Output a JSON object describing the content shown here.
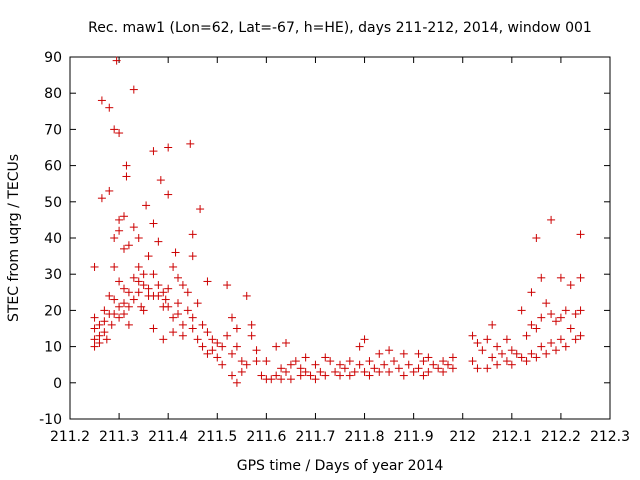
{
  "chart_data": {
    "type": "scatter",
    "title": "Rec. maw1 (Lon=62, Lat=-67, h=HE), days 211-212, 2014, window 001",
    "xlabel": "GPS time / Days of year 2014",
    "ylabel": "STEC from uqrg / TECUs",
    "xlim": [
      211.2,
      212.3
    ],
    "ylim": [
      -10,
      90
    ],
    "xticks": [
      "211.2",
      "211.3",
      "211.4",
      "211.5",
      "211.6",
      "211.7",
      "211.8",
      "211.9",
      "212",
      "212.1",
      "212.2",
      "212.3"
    ],
    "yticks": [
      "-10",
      "0",
      "10",
      "20",
      "30",
      "40",
      "50",
      "60",
      "70",
      "80",
      "90"
    ],
    "grid": false,
    "legend": "none",
    "marker": "plus",
    "color": "#cc0000",
    "series": [
      {
        "points": [
          [
            211.25,
            32
          ],
          [
            211.25,
            18
          ],
          [
            211.25,
            15
          ],
          [
            211.25,
            12
          ],
          [
            211.25,
            10
          ],
          [
            211.26,
            16
          ],
          [
            211.26,
            13
          ],
          [
            211.26,
            11
          ],
          [
            211.265,
            78
          ],
          [
            211.265,
            51
          ],
          [
            211.27,
            20
          ],
          [
            211.27,
            17
          ],
          [
            211.27,
            14
          ],
          [
            211.275,
            12
          ],
          [
            211.28,
            76
          ],
          [
            211.28,
            53
          ],
          [
            211.28,
            24
          ],
          [
            211.28,
            19
          ],
          [
            211.285,
            16
          ],
          [
            211.29,
            70
          ],
          [
            211.29,
            40
          ],
          [
            211.29,
            32
          ],
          [
            211.29,
            23
          ],
          [
            211.29,
            19
          ],
          [
            211.295,
            89
          ],
          [
            211.3,
            69
          ],
          [
            211.3,
            45
          ],
          [
            211.3,
            42
          ],
          [
            211.3,
            28
          ],
          [
            211.3,
            21
          ],
          [
            211.3,
            18
          ],
          [
            211.31,
            46
          ],
          [
            211.31,
            37
          ],
          [
            211.31,
            26
          ],
          [
            211.31,
            22
          ],
          [
            211.31,
            19
          ],
          [
            211.315,
            60
          ],
          [
            211.315,
            57
          ],
          [
            211.32,
            38
          ],
          [
            211.32,
            25
          ],
          [
            211.32,
            21
          ],
          [
            211.32,
            16
          ],
          [
            211.33,
            81
          ],
          [
            211.33,
            43
          ],
          [
            211.33,
            29
          ],
          [
            211.33,
            23
          ],
          [
            211.34,
            40
          ],
          [
            211.34,
            32
          ],
          [
            211.34,
            28
          ],
          [
            211.34,
            25
          ],
          [
            211.345,
            21
          ],
          [
            211.35,
            30
          ],
          [
            211.35,
            27
          ],
          [
            211.35,
            20
          ],
          [
            211.355,
            49
          ],
          [
            211.36,
            35
          ],
          [
            211.36,
            26
          ],
          [
            211.36,
            24
          ],
          [
            211.37,
            64
          ],
          [
            211.37,
            44
          ],
          [
            211.37,
            30
          ],
          [
            211.37,
            24
          ],
          [
            211.37,
            15
          ],
          [
            211.38,
            39
          ],
          [
            211.38,
            27
          ],
          [
            211.38,
            24
          ],
          [
            211.385,
            56
          ],
          [
            211.39,
            25
          ],
          [
            211.39,
            21
          ],
          [
            211.39,
            12
          ],
          [
            211.395,
            23
          ],
          [
            211.4,
            65
          ],
          [
            211.4,
            52
          ],
          [
            211.4,
            26
          ],
          [
            211.4,
            21
          ],
          [
            211.41,
            32
          ],
          [
            211.41,
            18
          ],
          [
            211.41,
            14
          ],
          [
            211.415,
            36
          ],
          [
            211.42,
            29
          ],
          [
            211.42,
            22
          ],
          [
            211.42,
            19
          ],
          [
            211.43,
            27
          ],
          [
            211.43,
            16
          ],
          [
            211.43,
            13
          ],
          [
            211.44,
            25
          ],
          [
            211.44,
            20
          ],
          [
            211.445,
            66
          ],
          [
            211.45,
            35
          ],
          [
            211.45,
            41
          ],
          [
            211.45,
            18
          ],
          [
            211.45,
            15
          ],
          [
            211.46,
            22
          ],
          [
            211.46,
            12
          ],
          [
            211.465,
            48
          ],
          [
            211.47,
            16
          ],
          [
            211.47,
            10
          ],
          [
            211.48,
            28
          ],
          [
            211.48,
            14
          ],
          [
            211.48,
            8
          ],
          [
            211.49,
            12
          ],
          [
            211.49,
            9
          ],
          [
            211.5,
            11
          ],
          [
            211.5,
            7
          ],
          [
            211.51,
            10
          ],
          [
            211.51,
            5
          ],
          [
            211.52,
            27
          ],
          [
            211.52,
            13
          ],
          [
            211.53,
            18
          ],
          [
            211.53,
            8
          ],
          [
            211.53,
            2
          ],
          [
            211.54,
            15
          ],
          [
            211.54,
            10
          ],
          [
            211.54,
            0
          ],
          [
            211.55,
            6
          ],
          [
            211.55,
            3
          ],
          [
            211.56,
            24
          ],
          [
            211.56,
            5
          ],
          [
            211.57,
            16
          ],
          [
            211.57,
            13
          ],
          [
            211.58,
            9
          ],
          [
            211.58,
            6
          ],
          [
            211.59,
            2
          ],
          [
            211.6,
            6
          ],
          [
            211.6,
            1
          ],
          [
            211.61,
            1
          ],
          [
            211.62,
            10
          ],
          [
            211.62,
            2
          ],
          [
            211.63,
            4
          ],
          [
            211.63,
            1
          ],
          [
            211.64,
            11
          ],
          [
            211.64,
            3
          ],
          [
            211.65,
            5
          ],
          [
            211.65,
            1
          ],
          [
            211.66,
            6
          ],
          [
            211.67,
            4
          ],
          [
            211.67,
            2
          ],
          [
            211.68,
            7
          ],
          [
            211.68,
            3
          ],
          [
            211.69,
            2
          ],
          [
            211.7,
            5
          ],
          [
            211.7,
            1
          ],
          [
            211.71,
            3
          ],
          [
            211.72,
            7
          ],
          [
            211.72,
            2
          ],
          [
            211.73,
            6
          ],
          [
            211.74,
            3
          ],
          [
            211.75,
            5
          ],
          [
            211.75,
            2
          ],
          [
            211.76,
            4
          ],
          [
            211.77,
            6
          ],
          [
            211.77,
            2
          ],
          [
            211.78,
            3
          ],
          [
            211.79,
            10
          ],
          [
            211.79,
            5
          ],
          [
            211.8,
            12
          ],
          [
            211.8,
            3
          ],
          [
            211.81,
            6
          ],
          [
            211.81,
            2
          ],
          [
            211.82,
            4
          ],
          [
            211.83,
            8
          ],
          [
            211.83,
            3
          ],
          [
            211.84,
            5
          ],
          [
            211.85,
            9
          ],
          [
            211.85,
            3
          ],
          [
            211.86,
            6
          ],
          [
            211.87,
            4
          ],
          [
            211.88,
            8
          ],
          [
            211.88,
            2
          ],
          [
            211.89,
            5
          ],
          [
            211.9,
            3
          ],
          [
            211.91,
            8
          ],
          [
            211.91,
            4
          ],
          [
            211.92,
            6
          ],
          [
            211.92,
            2
          ],
          [
            211.93,
            7
          ],
          [
            211.93,
            3
          ],
          [
            211.94,
            5
          ],
          [
            211.95,
            4
          ],
          [
            211.96,
            6
          ],
          [
            211.96,
            3
          ],
          [
            211.97,
            5
          ],
          [
            211.98,
            7
          ],
          [
            211.98,
            4
          ],
          [
            212.02,
            13
          ],
          [
            212.02,
            6
          ],
          [
            212.03,
            11
          ],
          [
            212.03,
            4
          ],
          [
            212.04,
            9
          ],
          [
            212.05,
            12
          ],
          [
            212.05,
            4
          ],
          [
            212.06,
            16
          ],
          [
            212.06,
            7
          ],
          [
            212.07,
            10
          ],
          [
            212.07,
            5
          ],
          [
            212.08,
            8
          ],
          [
            212.09,
            12
          ],
          [
            212.09,
            6
          ],
          [
            212.1,
            9
          ],
          [
            212.1,
            5
          ],
          [
            212.11,
            8
          ],
          [
            212.12,
            20
          ],
          [
            212.12,
            7
          ],
          [
            212.13,
            13
          ],
          [
            212.13,
            6
          ],
          [
            212.14,
            25
          ],
          [
            212.14,
            16
          ],
          [
            212.14,
            8
          ],
          [
            212.15,
            40
          ],
          [
            212.15,
            15
          ],
          [
            212.15,
            7
          ],
          [
            212.16,
            29
          ],
          [
            212.16,
            18
          ],
          [
            212.16,
            10
          ],
          [
            212.17,
            22
          ],
          [
            212.17,
            8
          ],
          [
            212.18,
            45
          ],
          [
            212.18,
            19
          ],
          [
            212.18,
            11
          ],
          [
            212.19,
            17
          ],
          [
            212.19,
            9
          ],
          [
            212.2,
            29
          ],
          [
            212.2,
            18
          ],
          [
            212.2,
            12
          ],
          [
            212.21,
            20
          ],
          [
            212.21,
            10
          ],
          [
            212.22,
            27
          ],
          [
            212.22,
            15
          ],
          [
            212.23,
            19
          ],
          [
            212.23,
            12
          ],
          [
            212.24,
            41
          ],
          [
            212.24,
            29
          ],
          [
            212.24,
            20
          ],
          [
            212.24,
            13
          ]
        ]
      }
    ]
  }
}
